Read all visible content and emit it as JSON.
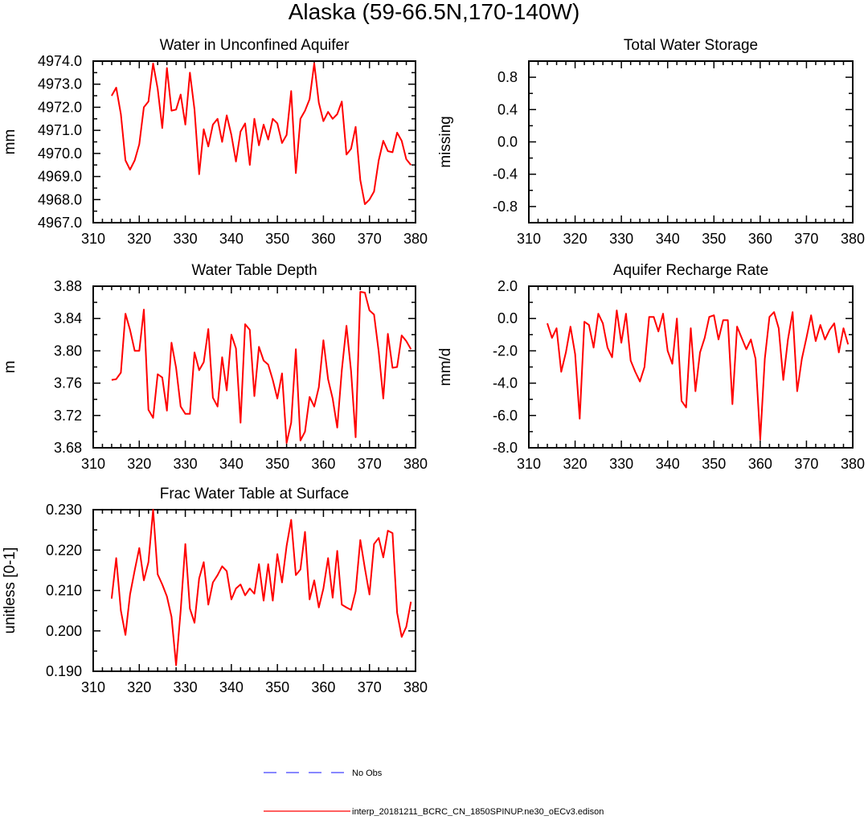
{
  "title": "Alaska (59-66.5N,170-140W)",
  "colors": {
    "model": "#ff0000",
    "obs": "#4040ff",
    "axis": "#000000"
  },
  "legend": [
    {
      "label": "No Obs",
      "style": "dashed",
      "color": "#4040ff"
    },
    {
      "label": "interp_20181211_BCRC_CN_1850SPINUP.ne30_oECv3.edison",
      "style": "solid",
      "color": "#ff0000"
    }
  ],
  "chart_data": [
    {
      "type": "line",
      "title": "Water in Unconfined Aquifer",
      "ylabel": "mm",
      "xlim": [
        310,
        380
      ],
      "ylim": [
        4967,
        4974
      ],
      "xticks": [
        "310",
        "320",
        "330",
        "340",
        "350",
        "360",
        "370",
        "380"
      ],
      "yticks": [
        "4967.0",
        "4968.0",
        "4969.0",
        "4970.0",
        "4971.0",
        "4972.0",
        "4973.0",
        "4974.0"
      ],
      "x_start": 314,
      "series": [
        {
          "values": [
            4972.5,
            4972.85,
            4971.7,
            4969.7,
            4969.3,
            4969.7,
            4970.4,
            4972.0,
            4972.25,
            4973.9,
            4972.8,
            4971.1,
            4973.7,
            4971.85,
            4971.9,
            4972.55,
            4971.25,
            4973.5,
            4971.9,
            4969.1,
            4971.05,
            4970.3,
            4971.25,
            4971.5,
            4970.5,
            4971.65,
            4970.8,
            4969.65,
            4970.95,
            4971.3,
            4969.5,
            4971.5,
            4970.35,
            4971.25,
            4970.6,
            4971.5,
            4971.3,
            4970.45,
            4970.8,
            4972.7,
            4969.15,
            4971.5,
            4971.85,
            4972.35,
            4973.9,
            4972.2,
            4971.4,
            4971.8,
            4971.5,
            4971.7,
            4972.25,
            4969.95,
            4970.2,
            4971.15,
            4968.85,
            4967.8,
            4968.0,
            4968.35,
            4969.7,
            4970.55,
            4970.1,
            4970.05,
            4970.9,
            4970.55,
            4969.75,
            4969.5
          ]
        }
      ]
    },
    {
      "type": "line",
      "title": "Total Water Storage",
      "ylabel": "missing",
      "xlim": [
        310,
        380
      ],
      "ylim": [
        -1,
        1
      ],
      "xticks": [
        "310",
        "320",
        "330",
        "340",
        "350",
        "360",
        "370",
        "380"
      ],
      "yticks": [
        "-0.8",
        "-0.4",
        "0.0",
        "0.4",
        "0.8"
      ],
      "yticks_values": [
        -0.8,
        -0.4,
        0,
        0.4,
        0.8
      ],
      "x_start": 314,
      "series": []
    },
    {
      "type": "line",
      "title": "Water Table Depth",
      "ylabel": "m",
      "xlim": [
        310,
        380
      ],
      "ylim": [
        3.68,
        3.88
      ],
      "xticks": [
        "310",
        "320",
        "330",
        "340",
        "350",
        "360",
        "370",
        "380"
      ],
      "yticks": [
        "3.68",
        "3.72",
        "3.76",
        "3.80",
        "3.84",
        "3.88"
      ],
      "x_start": 314,
      "series": [
        {
          "values": [
            3.764,
            3.765,
            3.773,
            3.846,
            3.826,
            3.8,
            3.8,
            3.851,
            3.727,
            3.717,
            3.771,
            3.767,
            3.726,
            3.81,
            3.779,
            3.731,
            3.722,
            3.722,
            3.798,
            3.776,
            3.786,
            3.827,
            3.742,
            3.731,
            3.792,
            3.751,
            3.82,
            3.803,
            3.711,
            3.833,
            3.826,
            3.744,
            3.805,
            3.788,
            3.783,
            3.764,
            3.741,
            3.772,
            3.686,
            3.711,
            3.802,
            3.689,
            3.7,
            3.743,
            3.731,
            3.755,
            3.813,
            3.765,
            3.741,
            3.705,
            3.776,
            3.831,
            3.775,
            3.693,
            3.873,
            3.872,
            3.85,
            3.845,
            3.799,
            3.741,
            3.821,
            3.779,
            3.78,
            3.819,
            3.812,
            3.802
          ]
        }
      ]
    },
    {
      "type": "line",
      "title": "Aquifer Recharge Rate",
      "ylabel": "mm/d",
      "xlim": [
        310,
        380
      ],
      "ylim": [
        -8,
        2
      ],
      "xticks": [
        "310",
        "320",
        "330",
        "340",
        "350",
        "360",
        "370",
        "380"
      ],
      "yticks": [
        "-8.0",
        "-6.0",
        "-4.0",
        "-2.0",
        "0.0",
        "2.0"
      ],
      "x_start": 314,
      "series": [
        {
          "values": [
            -0.3,
            -1.2,
            -0.6,
            -3.3,
            -2.1,
            -0.5,
            -2.2,
            -6.2,
            -0.2,
            -0.4,
            -1.8,
            0.3,
            -0.3,
            -1.8,
            -2.4,
            0.5,
            -1.5,
            0.3,
            -2.6,
            -3.3,
            -3.9,
            -3.0,
            0.1,
            0.1,
            -0.8,
            0.3,
            -2.0,
            -2.8,
            0.0,
            -5.1,
            -5.5,
            -0.6,
            -4.5,
            -2.1,
            -1.2,
            0.1,
            0.2,
            -1.3,
            -0.1,
            -0.1,
            -5.3,
            -0.5,
            -1.2,
            -1.9,
            -1.3,
            -2.5,
            -7.5,
            -2.5,
            0.1,
            0.4,
            -0.6,
            -3.8,
            -1.3,
            0.4,
            -4.5,
            -2.5,
            -1.2,
            0.2,
            -1.4,
            -0.4,
            -1.3,
            -0.7,
            -0.3,
            -2.1,
            -0.6,
            -1.6
          ]
        }
      ]
    },
    {
      "type": "line",
      "title": "Frac Water Table at Surface",
      "ylabel": "unitless [0-1]",
      "xlim": [
        310,
        380
      ],
      "ylim": [
        0.19,
        0.23
      ],
      "xticks": [
        "310",
        "320",
        "330",
        "340",
        "350",
        "360",
        "370",
        "380"
      ],
      "yticks": [
        "0.190",
        "0.200",
        "0.210",
        "0.220",
        "0.230"
      ],
      "x_start": 314,
      "series": [
        {
          "values": [
            0.208,
            0.218,
            0.205,
            0.199,
            0.209,
            0.215,
            0.2205,
            0.2125,
            0.217,
            0.23,
            0.214,
            0.2115,
            0.2085,
            0.2035,
            0.1915,
            0.205,
            0.2215,
            0.2055,
            0.202,
            0.213,
            0.217,
            0.2065,
            0.212,
            0.2138,
            0.216,
            0.2148,
            0.2078,
            0.2105,
            0.2115,
            0.2088,
            0.2105,
            0.2092,
            0.2165,
            0.2075,
            0.2165,
            0.2075,
            0.219,
            0.212,
            0.221,
            0.2275,
            0.2138,
            0.2152,
            0.2245,
            0.2078,
            0.2125,
            0.2058,
            0.2105,
            0.218,
            0.2082,
            0.2198,
            0.2065,
            0.2058,
            0.2052,
            0.2098,
            0.2225,
            0.2155,
            0.209,
            0.2215,
            0.223,
            0.2182,
            0.2248,
            0.2242,
            0.2045,
            0.1985,
            0.201,
            0.2072
          ]
        }
      ]
    }
  ]
}
